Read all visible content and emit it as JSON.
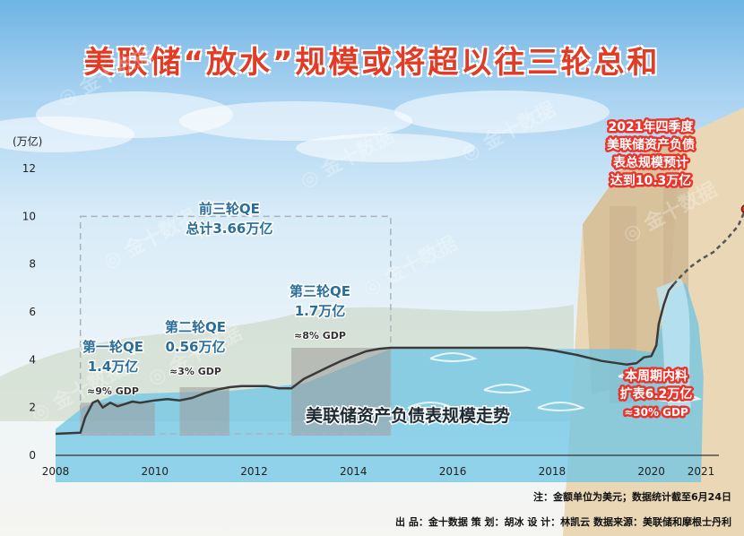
{
  "title": "美联储“放水”规模或将超以往三轮总和",
  "watermark": "金十数据",
  "chart_data": {
    "type": "area",
    "ylabel": "(万亿)",
    "xlabel": "",
    "series_label": "美联储资产负债表规模走势",
    "xlim": [
      2008,
      2021
    ],
    "ylim": [
      0,
      12
    ],
    "xticks": [
      2008,
      2010,
      2012,
      2014,
      2016,
      2018,
      2020,
      2021
    ],
    "yticks": [
      0,
      2,
      4,
      6,
      8,
      10,
      12
    ],
    "x": [
      2008.0,
      2008.5,
      2008.6,
      2008.75,
      2008.85,
      2008.95,
      2009.1,
      2009.25,
      2009.4,
      2009.55,
      2009.7,
      2009.85,
      2010.0,
      2010.25,
      2010.5,
      2010.75,
      2011.0,
      2011.25,
      2011.5,
      2011.75,
      2012.0,
      2012.25,
      2012.5,
      2012.75,
      2013.0,
      2013.25,
      2013.5,
      2013.75,
      2014.0,
      2014.25,
      2014.5,
      2014.75,
      2015.0,
      2015.5,
      2016.0,
      2016.5,
      2017.0,
      2017.5,
      2017.8,
      2018.0,
      2018.5,
      2019.0,
      2019.5,
      2019.7,
      2019.85,
      2020.0,
      2020.1,
      2020.15,
      2020.25,
      2020.35,
      2020.45
    ],
    "values": [
      0.9,
      0.95,
      1.6,
      2.2,
      2.3,
      2.0,
      2.2,
      2.05,
      2.15,
      2.25,
      2.2,
      2.25,
      2.3,
      2.35,
      2.3,
      2.4,
      2.6,
      2.75,
      2.85,
      2.9,
      2.9,
      2.9,
      2.8,
      2.8,
      3.2,
      3.45,
      3.7,
      3.95,
      4.15,
      4.35,
      4.45,
      4.5,
      4.5,
      4.5,
      4.5,
      4.5,
      4.5,
      4.5,
      4.45,
      4.4,
      4.2,
      3.95,
      3.8,
      3.85,
      4.1,
      4.15,
      4.6,
      5.5,
      6.3,
      6.9,
      7.15
    ],
    "projection": {
      "x": [
        2020.45,
        2020.6,
        2020.8,
        2021.0,
        2021.25,
        2021.5,
        2021.75,
        2021.9
      ],
      "values": [
        7.15,
        7.5,
        7.9,
        8.2,
        8.5,
        9.0,
        9.6,
        10.3
      ]
    },
    "qe_rounds": [
      {
        "name": "第一轮QE",
        "amount": "1.4万亿",
        "gdp": "≈9% GDP",
        "start": 2008.5,
        "end": 2010.0,
        "height": 2.2
      },
      {
        "name": "第二轮QE",
        "amount": "0.56万亿",
        "gdp": "≈3% GDP",
        "start": 2010.5,
        "end": 2011.5,
        "height": 2.85
      },
      {
        "name": "第三轮QE",
        "amount": "1.7万亿",
        "gdp": "≈8% GDP",
        "start": 2012.75,
        "end": 2014.75,
        "height": 4.5
      }
    ],
    "bracket": {
      "label_line1": "前三轮QE",
      "label_line2": "总计3.66万亿",
      "start": 2008.5,
      "end": 2014.75,
      "top": 10
    },
    "annotations": {
      "forecast": [
        "2021年四季度",
        "美联储资产负债",
        "表总规模预计",
        "达到10.3万亿"
      ],
      "current": [
        "本周期内料",
        "扩表6.2万亿",
        "≈30% GDP"
      ]
    }
  },
  "footer": {
    "note": "注：金额单位为美元；数据统计截至6月24日",
    "credits": "出  品：金十数据      策  划：胡冰      设  计：林凯云      数据来源：美联储和摩根士丹利"
  },
  "colors": {
    "title": "#e23b26",
    "line": "#3a3a3a",
    "water": "#6ec5e6",
    "qe_box": "#9c9c9c",
    "qe_text": "#2a6e99",
    "annotation_bg": "#e8342a"
  }
}
